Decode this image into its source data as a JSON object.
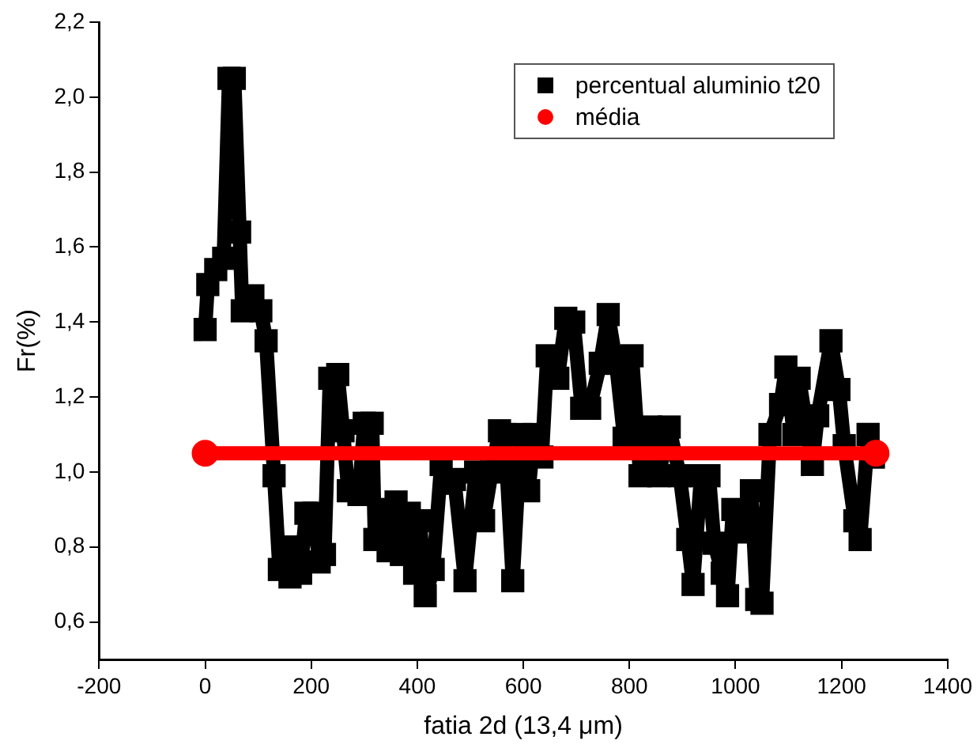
{
  "chart_data": {
    "type": "line",
    "xlabel": "fatia 2d (13,4 μm)",
    "ylabel": "Fr(%)",
    "xlim": [
      -200,
      1400
    ],
    "xticks": [
      -200,
      0,
      200,
      400,
      600,
      800,
      1000,
      1200,
      1400
    ],
    "ylim": [
      0.5,
      2.2
    ],
    "yticks": [
      {
        "value": 0.6,
        "label": "0,6"
      },
      {
        "value": 0.8,
        "label": "0,8"
      },
      {
        "value": 1.0,
        "label": "1,0"
      },
      {
        "value": 1.2,
        "label": "1,2"
      },
      {
        "value": 1.4,
        "label": "1,4"
      },
      {
        "value": 1.6,
        "label": "1,6"
      },
      {
        "value": 1.8,
        "label": "1,8"
      },
      {
        "value": 2.0,
        "label": "2,0"
      },
      {
        "value": 2.2,
        "label": "2,2"
      }
    ],
    "grid": false,
    "legend": "top right",
    "series": [
      {
        "name": "percentual aluminio t20",
        "color": "#000000",
        "marker": "square",
        "x": [
          0,
          5,
          20,
          35,
          45,
          55,
          65,
          70,
          90,
          105,
          115,
          130,
          140,
          160,
          170,
          180,
          190,
          205,
          215,
          225,
          235,
          250,
          260,
          270,
          290,
          300,
          315,
          320,
          335,
          345,
          360,
          370,
          385,
          395,
          405,
          415,
          430,
          445,
          460,
          470,
          490,
          510,
          525,
          540,
          555,
          565,
          580,
          595,
          610,
          620,
          635,
          645,
          665,
          680,
          695,
          710,
          725,
          745,
          760,
          775,
          790,
          805,
          820,
          840,
          855,
          875,
          895,
          910,
          920,
          935,
          950,
          960,
          975,
          985,
          995,
          1015,
          1030,
          1040,
          1050,
          1065,
          1085,
          1095,
          1110,
          1120,
          1145,
          1155,
          1180,
          1195,
          1205,
          1225,
          1235,
          1250,
          1260
        ],
        "values": [
          1.38,
          1.5,
          1.54,
          1.57,
          2.05,
          2.05,
          1.64,
          1.43,
          1.47,
          1.43,
          1.35,
          0.99,
          0.74,
          0.72,
          0.8,
          0.73,
          0.89,
          0.89,
          0.76,
          0.78,
          1.25,
          1.26,
          1.11,
          0.95,
          0.94,
          1.13,
          1.13,
          0.82,
          0.9,
          0.79,
          0.92,
          0.78,
          0.89,
          0.73,
          0.87,
          0.67,
          0.74,
          1.02,
          0.97,
          0.98,
          0.71,
          1.0,
          0.87,
          1.0,
          1.11,
          1.1,
          0.71,
          1.1,
          0.95,
          1.1,
          1.04,
          1.31,
          1.25,
          1.41,
          1.4,
          1.17,
          1.17,
          1.29,
          1.42,
          1.29,
          1.09,
          1.31,
          0.99,
          1.12,
          0.99,
          1.12,
          0.99,
          0.82,
          0.7,
          0.99,
          0.99,
          0.81,
          0.73,
          0.67,
          0.9,
          0.84,
          0.95,
          0.66,
          0.65,
          1.1,
          1.18,
          1.28,
          1.1,
          1.25,
          1.02,
          1.15,
          1.35,
          1.22,
          1.07,
          0.87,
          0.82,
          1.1,
          1.04
        ]
      },
      {
        "name": "média",
        "color": "#ff0000",
        "marker": "circle",
        "x": [
          0,
          1265
        ],
        "values": [
          1.05,
          1.05
        ]
      }
    ]
  }
}
